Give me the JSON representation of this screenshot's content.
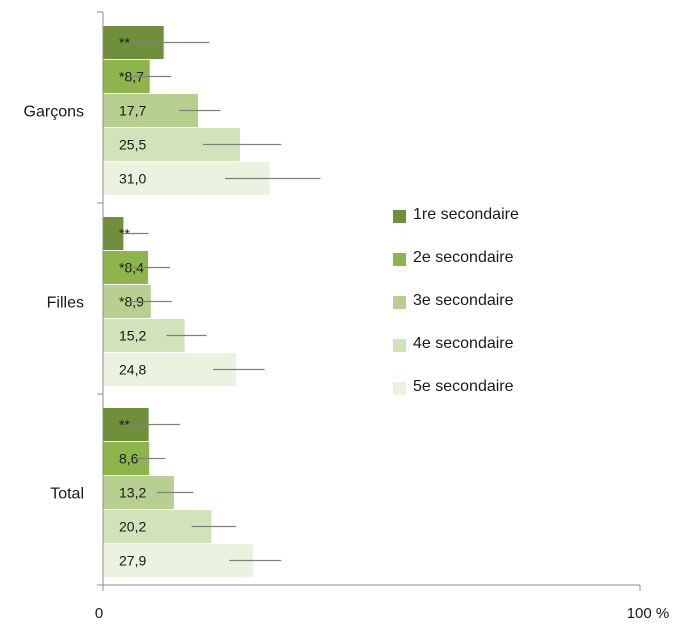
{
  "chart_data": {
    "type": "bar",
    "orientation": "horizontal",
    "categories": [
      "Garçons",
      "Filles",
      "Total"
    ],
    "series": [
      {
        "name": "1re secondaire",
        "color": "#6f8f3a",
        "values": [
          11.3,
          3.8,
          8.5
        ],
        "labels": [
          "**",
          "**",
          "**"
        ],
        "error_low": [
          4.8,
          2.0,
          4.5
        ],
        "error_high": [
          19.8,
          8.5,
          14.3
        ]
      },
      {
        "name": "2e secondaire",
        "color": "#8db54b",
        "values": [
          8.7,
          8.4,
          8.6
        ],
        "labels": [
          "*8,7",
          "*8,4",
          "8,6"
        ],
        "error_low": [
          4.8,
          4.5,
          5.6
        ],
        "error_high": [
          12.7,
          12.5,
          11.6
        ]
      },
      {
        "name": "3e secondaire",
        "color": "#b7d08f",
        "values": [
          17.7,
          8.9,
          13.2
        ],
        "labels": [
          "17,7",
          "*8,9",
          "13,2"
        ],
        "error_low": [
          14.2,
          4.8,
          10.0
        ],
        "error_high": [
          21.9,
          12.8,
          16.8
        ]
      },
      {
        "name": "4e secondaire",
        "color": "#d3e3b9",
        "values": [
          25.5,
          15.2,
          20.2
        ],
        "labels": [
          "25,5",
          "15,2",
          "20,2"
        ],
        "error_low": [
          18.6,
          11.8,
          16.5
        ],
        "error_high": [
          33.2,
          19.3,
          24.8
        ]
      },
      {
        "name": "5e secondaire",
        "color": "#ebf2df",
        "values": [
          31.0,
          24.8,
          27.9
        ],
        "labels": [
          "31,0",
          "24,8",
          "27,9"
        ],
        "error_low": [
          22.7,
          20.5,
          23.5
        ],
        "error_high": [
          40.5,
          30.1,
          33.2
        ]
      }
    ],
    "xlim": [
      0,
      100
    ],
    "xticks": [
      "0",
      "100 %"
    ],
    "legend_position": "right"
  }
}
